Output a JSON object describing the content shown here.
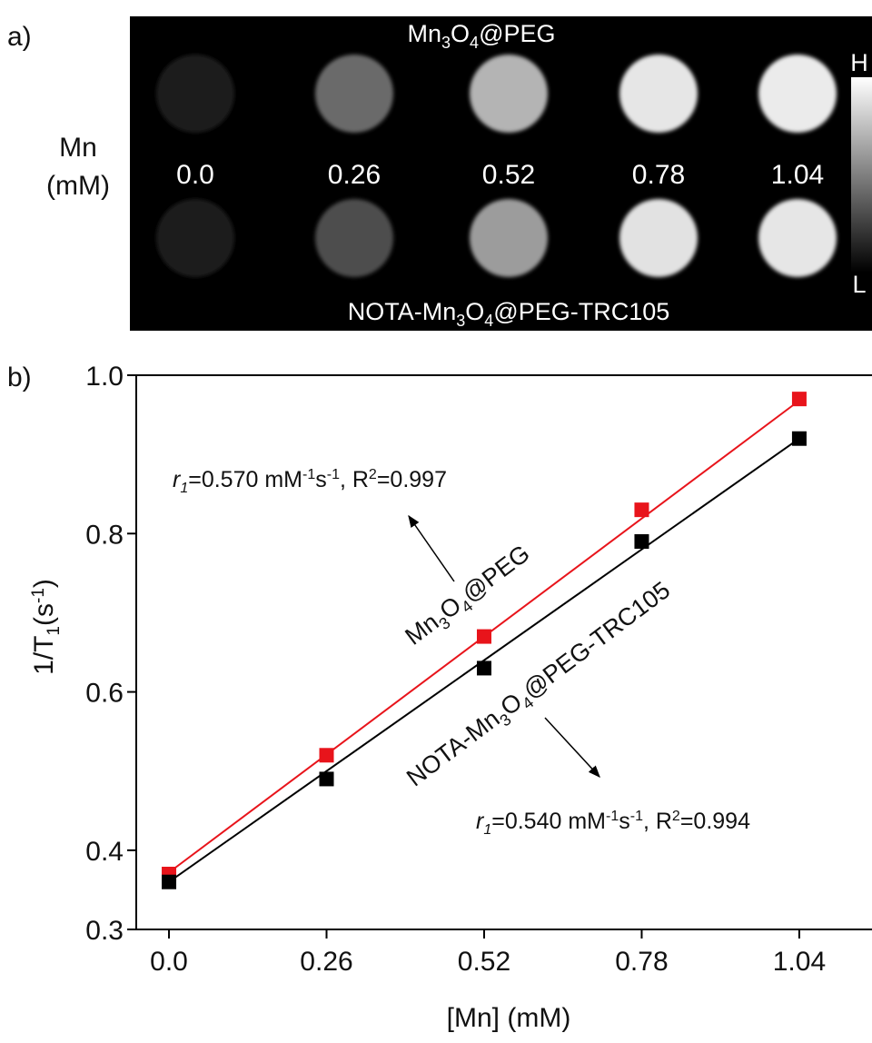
{
  "panel_a": {
    "label": "a)",
    "row_title": [
      "Mn",
      "(mM)"
    ],
    "concentrations": [
      "0.0",
      "0.26",
      "0.52",
      "0.78",
      "1.04"
    ],
    "top_label_parts": [
      "Mn",
      "3",
      "O",
      "4",
      "@PEG"
    ],
    "bottom_label_parts": [
      "NOTA-Mn",
      "3",
      "O",
      "4",
      "@PEG-TRC105"
    ],
    "rows": [
      {
        "fills": [
          "#1e1e1e",
          "#6a6a6a",
          "#b4b4b4",
          "#e6e6e6",
          "#ebebeb"
        ]
      },
      {
        "fills": [
          "#1c1c1c",
          "#4e4e4e",
          "#9c9c9c",
          "#e2e2e2",
          "#e6e6e6"
        ]
      }
    ],
    "colorbar_high": "H",
    "colorbar_low": "L"
  },
  "chart_data": {
    "type": "scatter",
    "panel_label": "b)",
    "x_label": "[Mn] (mM)",
    "y_label_parts": [
      "1/T",
      "1",
      "(s",
      "-1",
      ")"
    ],
    "x": [
      0,
      0.26,
      0.52,
      0.78,
      1.04
    ],
    "xlim": [
      -0.054,
      1.16
    ],
    "ylim": [
      0.3,
      1.0
    ],
    "xticks": [
      {
        "value": 0,
        "label": "0.0"
      },
      0.26,
      0.52,
      0.78,
      1.04
    ],
    "yticks": [
      0.3,
      0.4,
      0.6,
      0.8,
      {
        "value": 1.0,
        "label": "1.0"
      }
    ],
    "series": [
      {
        "label_parts": [
          "Mn",
          "3",
          "O",
          "4",
          "@PEG"
        ],
        "color": "#e8141b",
        "values": [
          0.37,
          0.52,
          0.67,
          0.83,
          0.97
        ],
        "fit_x": [
          0,
          1.04
        ],
        "fit_y": [
          0.372,
          0.968
        ],
        "annotation_parts": [
          "r",
          "1",
          "=0.570 mM",
          "-1",
          "s",
          "-1",
          ", R",
          "2",
          "=0.997"
        ]
      },
      {
        "label_parts": [
          "NOTA-Mn",
          "3",
          "O",
          "4",
          "@PEG-TRC105"
        ],
        "color": "#000000",
        "values": [
          0.36,
          0.49,
          0.63,
          0.79,
          0.92
        ],
        "fit_x": [
          0,
          1.04
        ],
        "fit_y": [
          0.36,
          0.92
        ],
        "annotation_parts": [
          "r",
          "1",
          "=0.540 mM",
          "-1",
          "s",
          "-1",
          ", R",
          "2",
          "=0.994"
        ]
      }
    ]
  }
}
